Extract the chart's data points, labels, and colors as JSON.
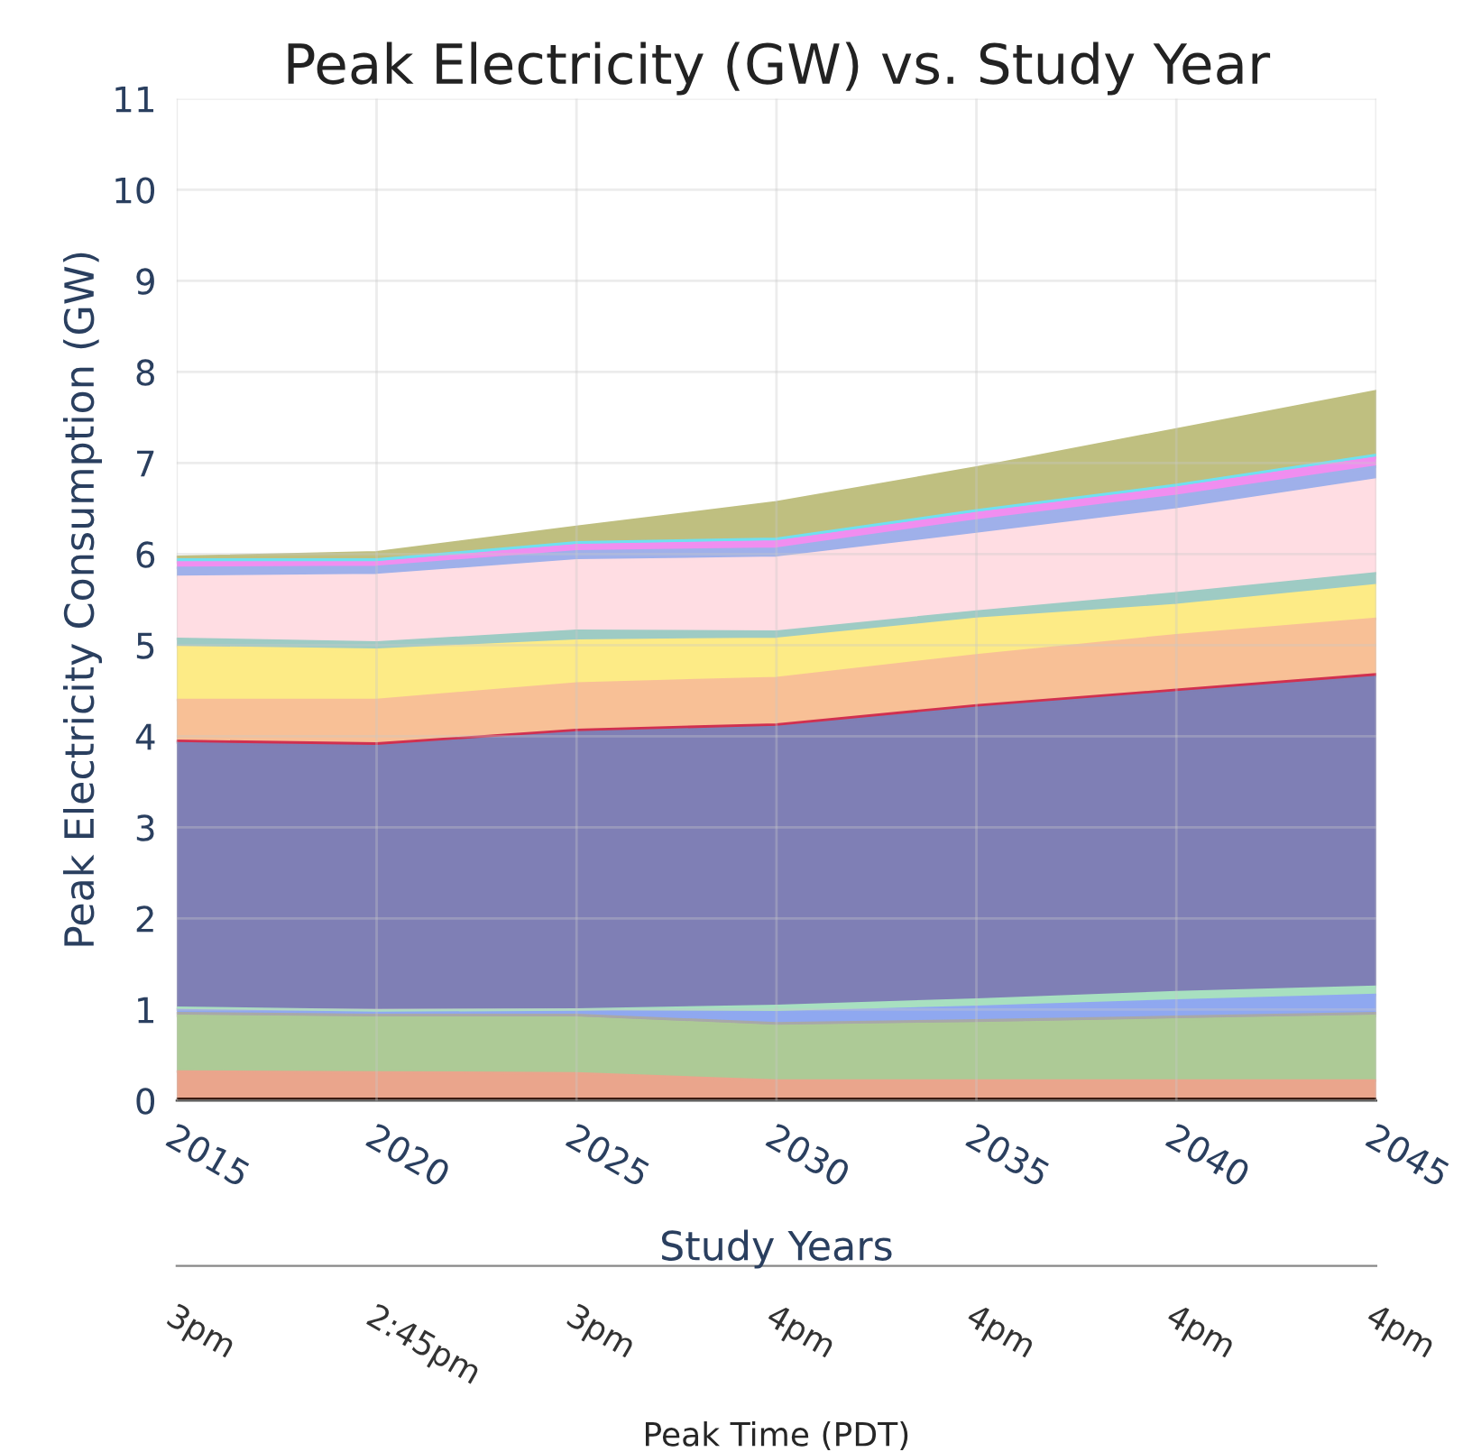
{
  "chart_data": {
    "type": "area",
    "stacked": true,
    "title": "Peak Electricity (GW) vs. Study Year",
    "xlabel": "Study Years",
    "ylabel": "Peak Electricity Consumption (GW)",
    "x2label": "Peak Time (PDT)",
    "x": [
      2015,
      2020,
      2025,
      2030,
      2035,
      2040,
      2045
    ],
    "xlim": [
      2015,
      2045
    ],
    "xticks": [
      2015,
      2020,
      2025,
      2030,
      2035,
      2040,
      2045
    ],
    "annotations": [
      "3pm",
      "2:45pm",
      "3pm",
      "4pm",
      "4pm",
      "4pm",
      "4pm"
    ],
    "ylim": [
      0,
      11
    ],
    "yticks": [
      0,
      1,
      2,
      3,
      4,
      5,
      6,
      7,
      8,
      9,
      10,
      11
    ],
    "grid": true,
    "legend": false,
    "series": [
      {
        "color": "#3a1a10",
        "values": [
          0.02,
          0.02,
          0.02,
          0.02,
          0.02,
          0.02,
          0.02
        ]
      },
      {
        "color": "#eaa58c",
        "values": [
          0.3,
          0.29,
          0.28,
          0.2,
          0.2,
          0.2,
          0.2
        ]
      },
      {
        "color": "#adca96",
        "values": [
          0.61,
          0.6,
          0.61,
          0.6,
          0.63,
          0.67,
          0.71
        ]
      },
      {
        "color": "#a8a8a8",
        "values": [
          0.03,
          0.03,
          0.03,
          0.03,
          0.03,
          0.03,
          0.03
        ]
      },
      {
        "color": "#8fa8f0",
        "values": [
          0.04,
          0.03,
          0.04,
          0.12,
          0.15,
          0.18,
          0.2
        ]
      },
      {
        "color": "#a8e0c0",
        "values": [
          0.02,
          0.02,
          0.02,
          0.07,
          0.08,
          0.09,
          0.09
        ]
      },
      {
        "color": "#7f7fb5",
        "values": [
          2.91,
          2.91,
          3.05,
          3.07,
          3.21,
          3.3,
          3.41
        ]
      },
      {
        "color": "#d03050",
        "values": [
          0.02,
          0.02,
          0.02,
          0.02,
          0.02,
          0.02,
          0.02
        ]
      },
      {
        "color": "#f8c096",
        "values": [
          0.45,
          0.48,
          0.51,
          0.51,
          0.55,
          0.6,
          0.61
        ]
      },
      {
        "color": "#fdeb86",
        "values": [
          0.58,
          0.55,
          0.47,
          0.43,
          0.4,
          0.33,
          0.37
        ]
      },
      {
        "color": "#9ecbc4",
        "values": [
          0.09,
          0.08,
          0.11,
          0.08,
          0.08,
          0.13,
          0.13
        ]
      },
      {
        "color": "#ffdde3",
        "values": [
          0.68,
          0.74,
          0.77,
          0.81,
          0.85,
          0.92,
          1.03
        ]
      },
      {
        "color": "#9fb0ea",
        "values": [
          0.1,
          0.09,
          0.1,
          0.1,
          0.15,
          0.15,
          0.14
        ]
      },
      {
        "color": "#f08ef0",
        "values": [
          0.06,
          0.05,
          0.07,
          0.08,
          0.08,
          0.09,
          0.1
        ]
      },
      {
        "color": "#70e0f0",
        "values": [
          0.03,
          0.03,
          0.03,
          0.03,
          0.03,
          0.03,
          0.03
        ]
      },
      {
        "color": "#bfbf80",
        "values": [
          0.03,
          0.08,
          0.17,
          0.4,
          0.47,
          0.61,
          0.7
        ]
      }
    ]
  }
}
